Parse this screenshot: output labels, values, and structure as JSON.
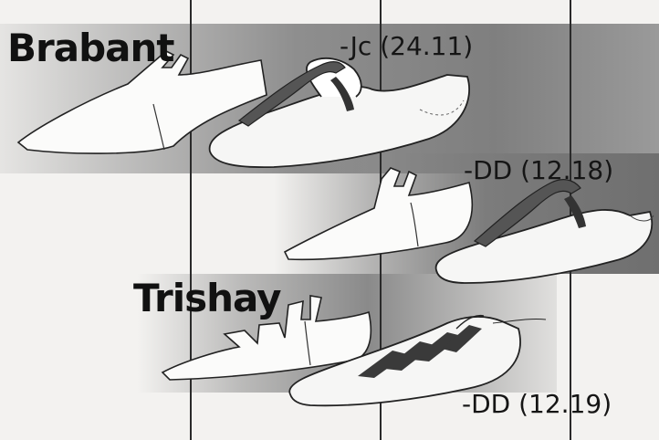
{
  "labels": {
    "brabant": "Brabant",
    "trishay": "Trishay"
  },
  "codes": {
    "jc": "-Jc (24.11)",
    "dd1218": "-DD (12.18)",
    "dd1219": "-DD (12.19)"
  },
  "colors": {
    "background": "#f3f2f0",
    "band_dark": "#8a8a8a",
    "ink": "#111111",
    "shoe_fill": "#fbfbfa"
  }
}
